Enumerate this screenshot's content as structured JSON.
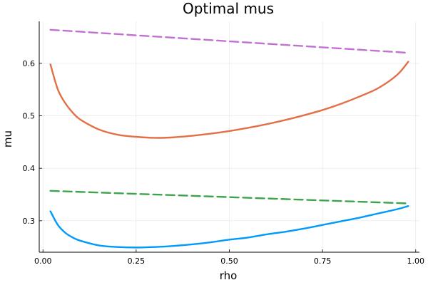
{
  "chart_data": {
    "type": "line",
    "title": "Optimal mus",
    "xlabel": "rho",
    "ylabel": "mu",
    "xlim": [
      -0.01,
      1.01
    ],
    "ylim": [
      0.24,
      0.68
    ],
    "xticks": [
      0.0,
      0.25,
      0.5,
      0.75,
      1.0
    ],
    "xtick_labels": [
      "0.00",
      "0.25",
      "0.50",
      "0.75",
      "1.00"
    ],
    "yticks": [
      0.3,
      0.4,
      0.5,
      0.6
    ],
    "ytick_labels": [
      "0.3",
      "0.4",
      "0.5",
      "0.6"
    ],
    "grid": true,
    "legend": false,
    "series": [
      {
        "color": "#009AFA",
        "style": "solid",
        "x": [
          0.02,
          0.04,
          0.06,
          0.08,
          0.1,
          0.15,
          0.2,
          0.25,
          0.3,
          0.35,
          0.4,
          0.45,
          0.5,
          0.55,
          0.6,
          0.65,
          0.7,
          0.75,
          0.8,
          0.85,
          0.9,
          0.95,
          0.98
        ],
        "y": [
          0.318,
          0.292,
          0.277,
          0.268,
          0.262,
          0.253,
          0.25,
          0.249,
          0.25,
          0.252,
          0.255,
          0.259,
          0.264,
          0.268,
          0.274,
          0.279,
          0.285,
          0.292,
          0.299,
          0.306,
          0.314,
          0.322,
          0.328
        ]
      },
      {
        "color": "#E26F46",
        "style": "solid",
        "x": [
          0.02,
          0.04,
          0.06,
          0.08,
          0.1,
          0.15,
          0.2,
          0.25,
          0.3,
          0.35,
          0.4,
          0.45,
          0.5,
          0.55,
          0.6,
          0.65,
          0.7,
          0.75,
          0.8,
          0.85,
          0.9,
          0.95,
          0.98
        ],
        "y": [
          0.598,
          0.55,
          0.524,
          0.506,
          0.493,
          0.474,
          0.464,
          0.46,
          0.458,
          0.459,
          0.462,
          0.466,
          0.471,
          0.477,
          0.484,
          0.492,
          0.501,
          0.511,
          0.523,
          0.537,
          0.553,
          0.578,
          0.603
        ]
      },
      {
        "color": "#3DA44D",
        "style": "dashed",
        "x": [
          0.02,
          0.98
        ],
        "y": [
          0.357,
          0.333
        ]
      },
      {
        "color": "#C271D2",
        "style": "dashed",
        "x": [
          0.02,
          0.98
        ],
        "y": [
          0.664,
          0.62
        ]
      }
    ]
  }
}
